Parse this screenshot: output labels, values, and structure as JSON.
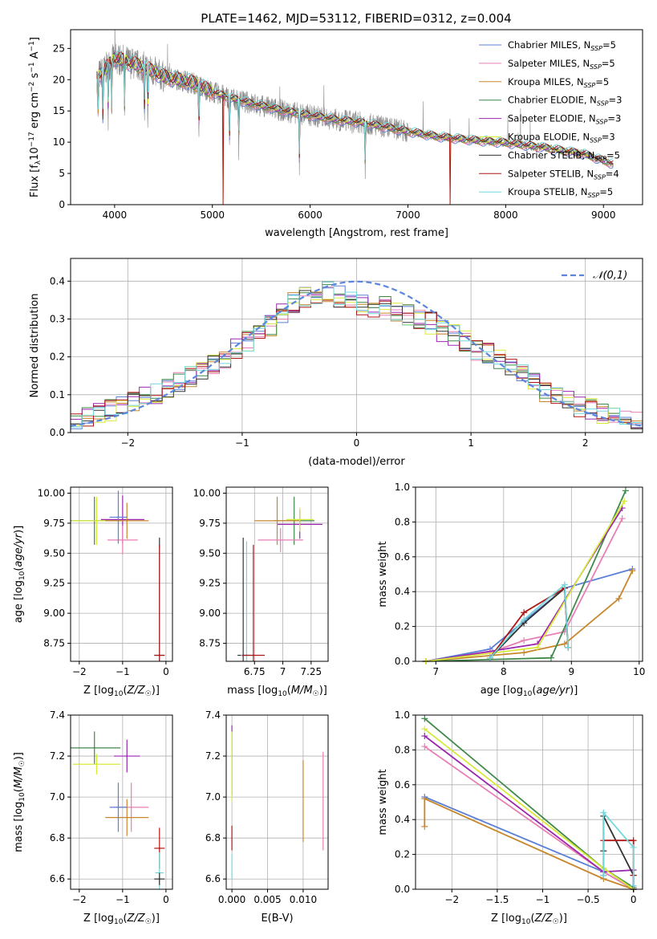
{
  "figure": {
    "title": "PLATE=1462, MJD=53112, FIBERID=0312, z=0.004"
  },
  "models": [
    {
      "name": "Chabrier MILES",
      "nssp": "5",
      "color": "#5b7fd6"
    },
    {
      "name": "Salpeter MILES",
      "nssp": "5",
      "color": "#e87fb4"
    },
    {
      "name": "Kroupa MILES",
      "nssp": "5",
      "color": "#c7872b"
    },
    {
      "name": "Chabrier ELODIE",
      "nssp": "3",
      "color": "#3f8a4a"
    },
    {
      "name": "Salpeter ELODIE",
      "nssp": "3",
      "color": "#9b27b0"
    },
    {
      "name": "Kroupa ELODIE",
      "nssp": "3",
      "color": "#d7ea3a"
    },
    {
      "name": "Chabrier STELIB",
      "nssp": "5",
      "color": "#333333"
    },
    {
      "name": "Salpeter STELIB",
      "nssp": "4",
      "color": "#b01515"
    },
    {
      "name": "Kroupa STELIB",
      "nssp": "5",
      "color": "#72d7da"
    }
  ],
  "chart_data": [
    {
      "id": "spectrum",
      "type": "line",
      "xlabel": "wavelength [Angstrom, rest frame]",
      "ylabel": "Flux [f",
      "xlim": [
        3550,
        9400
      ],
      "ylim": [
        0,
        28
      ],
      "xticks": [
        4000,
        5000,
        6000,
        7000,
        8000,
        9000
      ],
      "yticks": [
        0,
        5,
        10,
        15,
        20,
        25
      ],
      "legend_placement": "top-right",
      "continuum": {
        "x": [
          3820,
          3900,
          4000,
          4100,
          4300,
          4500,
          4800,
          5000,
          5200,
          5500,
          5800,
          6000,
          6300,
          6500,
          6800,
          7000,
          7300,
          7600,
          8000,
          8400,
          8800,
          9100
        ],
        "y": [
          20.5,
          21.5,
          23.5,
          23.0,
          22.0,
          20.5,
          19.5,
          18.0,
          17.0,
          15.8,
          14.8,
          14.3,
          13.5,
          13.2,
          12.3,
          11.7,
          10.9,
          10.4,
          9.9,
          9.1,
          8.1,
          6.5
        ]
      },
      "absorption_lines": [
        3830,
        3880,
        3935,
        3970,
        4102,
        4305,
        4340,
        4862,
        5175,
        5270,
        5890,
        6563
      ],
      "deep_drops": [
        5110,
        7430
      ]
    },
    {
      "id": "residuals",
      "type": "line",
      "xlabel": "(data-model)/error",
      "ylabel": "Normed distribution",
      "xlim": [
        -2.5,
        2.5
      ],
      "ylim": [
        0,
        0.46
      ],
      "xticks": [
        -2,
        -1,
        0,
        1,
        2
      ],
      "yticks": [
        0.0,
        0.1,
        0.2,
        0.3,
        0.4
      ],
      "legend": "𝒩(0,1)",
      "legend_placement": "top-right",
      "grid": true,
      "bin_edges_range": [
        -2.5,
        2.5
      ],
      "bins": 50,
      "hist_base": [
        0.03,
        0.04,
        0.05,
        0.06,
        0.07,
        0.08,
        0.09,
        0.1,
        0.12,
        0.13,
        0.15,
        0.17,
        0.18,
        0.2,
        0.22,
        0.24,
        0.26,
        0.28,
        0.31,
        0.34,
        0.36,
        0.37,
        0.37,
        0.36,
        0.35,
        0.34,
        0.33,
        0.33,
        0.32,
        0.31,
        0.3,
        0.29,
        0.27,
        0.26,
        0.24,
        0.22,
        0.21,
        0.19,
        0.17,
        0.15,
        0.13,
        0.11,
        0.1,
        0.08,
        0.07,
        0.06,
        0.05,
        0.04,
        0.03,
        0.03
      ]
    },
    {
      "id": "age-vs-Z",
      "type": "scatter",
      "xlabel": "Z [log10(Z/Z☉)]",
      "ylabel": "age  [log10(age/yr)]",
      "xlim": [
        -2.2,
        0.15
      ],
      "ylim": [
        8.6,
        10.05
      ],
      "xticks": [
        -2,
        -1,
        0
      ],
      "yticks": [
        8.75,
        9.0,
        9.25,
        9.5,
        9.75,
        10.0
      ],
      "grid": true,
      "points": [
        {
          "model": 3,
          "x": -1.65,
          "y": 9.77,
          "xerr": 0.6,
          "yerr": 0.2
        },
        {
          "model": 5,
          "x": -1.6,
          "y": 9.77,
          "xerr": 0.58,
          "yerr": 0.2
        },
        {
          "model": 4,
          "x": -1.0,
          "y": 9.78,
          "xerr": 0.5,
          "yerr": 0.2
        },
        {
          "model": 2,
          "x": -0.9,
          "y": 9.77,
          "xerr": 0.5,
          "yerr": 0.15
        },
        {
          "model": 1,
          "x": -1.0,
          "y": 9.61,
          "xerr": 0.35,
          "yerr": 0.12
        },
        {
          "model": 0,
          "x": -1.1,
          "y": 9.8,
          "xerr": 0.2,
          "yerr": 0.22
        },
        {
          "model": 6,
          "x": -0.15,
          "y": 8.65,
          "xerr": 0.12,
          "yerr": 0.98
        },
        {
          "model": 8,
          "x": -0.15,
          "y": 8.65,
          "xerr": 0.12,
          "yerr": 0.9
        },
        {
          "model": 7,
          "x": -0.15,
          "y": 8.65,
          "xerr": 0.12,
          "yerr": 0.92
        }
      ]
    },
    {
      "id": "age-vs-mass",
      "type": "scatter",
      "xlabel": "mass [log10(M/M☉)]",
      "ylabel": "",
      "xlim": [
        6.5,
        7.4
      ],
      "ylim": [
        8.6,
        10.05
      ],
      "xticks": [
        6.75,
        7.0,
        7.25
      ],
      "yticks": [
        8.75,
        9.0,
        9.25,
        9.5,
        9.75,
        10.0
      ],
      "grid": true,
      "points": [
        {
          "model": 3,
          "x": 7.1,
          "y": 9.77,
          "xerr": 0.18,
          "yerr": 0.2
        },
        {
          "model": 4,
          "x": 7.15,
          "y": 9.74,
          "xerr": 0.2,
          "yerr": 0.12
        },
        {
          "model": 2,
          "x": 6.95,
          "y": 9.77,
          "xerr": 0.2,
          "yerr": 0.2
        },
        {
          "model": 1,
          "x": 6.98,
          "y": 9.61,
          "xerr": 0.2,
          "yerr": 0.1
        },
        {
          "model": 5,
          "x": 7.15,
          "y": 9.78,
          "xerr": 0.12,
          "yerr": 0.1
        },
        {
          "model": 6,
          "x": 6.65,
          "y": 8.65,
          "xerr": 0.05,
          "yerr": 0.98
        },
        {
          "model": 8,
          "x": 6.68,
          "y": 8.65,
          "xerr": 0.05,
          "yerr": 0.95
        },
        {
          "model": 7,
          "x": 6.74,
          "y": 8.65,
          "xerr": 0.1,
          "yerr": 0.92
        }
      ]
    },
    {
      "id": "mass-weight-vs-age",
      "type": "line",
      "xlabel": "age  [log10(age/yr)]",
      "ylabel": "mass weight",
      "xlim": [
        6.7,
        10.05
      ],
      "ylim": [
        0,
        1.0
      ],
      "xticks": [
        7,
        8,
        9,
        10
      ],
      "yticks": [
        0.0,
        0.2,
        0.4,
        0.6,
        0.8,
        1.0
      ],
      "grid": true,
      "series": [
        {
          "model": 0,
          "x": [
            6.85,
            7.8,
            8.3,
            8.9,
            9.9
          ],
          "y": [
            0.0,
            0.07,
            0.23,
            0.42,
            0.53
          ]
        },
        {
          "model": 1,
          "x": [
            6.85,
            7.8,
            8.3,
            8.9,
            9.75
          ],
          "y": [
            0.0,
            0.05,
            0.12,
            0.17,
            0.82
          ]
        },
        {
          "model": 2,
          "x": [
            6.85,
            8.3,
            8.9,
            9.7,
            9.9
          ],
          "y": [
            0.0,
            0.05,
            0.1,
            0.36,
            0.52
          ]
        },
        {
          "model": 3,
          "x": [
            6.85,
            8.7,
            9.8
          ],
          "y": [
            0.0,
            0.02,
            0.98
          ]
        },
        {
          "model": 4,
          "x": [
            6.85,
            8.5,
            9.75
          ],
          "y": [
            0.0,
            0.1,
            0.88
          ]
        },
        {
          "model": 5,
          "x": [
            6.85,
            8.5,
            9.78
          ],
          "y": [
            0.0,
            0.08,
            0.92
          ]
        },
        {
          "model": 6,
          "x": [
            7.8,
            8.3,
            8.9,
            8.95
          ],
          "y": [
            0.02,
            0.22,
            0.42,
            0.08
          ]
        },
        {
          "model": 7,
          "x": [
            7.8,
            8.3,
            8.9,
            8.95
          ],
          "y": [
            0.02,
            0.28,
            0.42,
            0.08
          ]
        },
        {
          "model": 8,
          "x": [
            7.8,
            8.3,
            8.9,
            8.95
          ],
          "y": [
            0.02,
            0.24,
            0.44,
            0.08
          ]
        }
      ]
    },
    {
      "id": "mass-vs-Z",
      "type": "scatter",
      "xlabel": "Z [log10(Z/Z☉)]",
      "ylabel": "mass [log10(M/M☉)]",
      "xlim": [
        -2.2,
        0.15
      ],
      "ylim": [
        6.55,
        7.4
      ],
      "xticks": [
        -2,
        -1,
        0
      ],
      "yticks": [
        6.6,
        6.8,
        7.0,
        7.2,
        7.4
      ],
      "grid": true,
      "points": [
        {
          "model": 3,
          "x": -1.65,
          "y": 7.24,
          "xerr": 0.6,
          "yerr": 0.08
        },
        {
          "model": 5,
          "x": -1.6,
          "y": 7.16,
          "xerr": 0.55,
          "yerr": 0.05
        },
        {
          "model": 4,
          "x": -0.9,
          "y": 7.2,
          "xerr": 0.3,
          "yerr": 0.08
        },
        {
          "model": 1,
          "x": -0.8,
          "y": 6.95,
          "xerr": 0.4,
          "yerr": 0.12
        },
        {
          "model": 2,
          "x": -0.9,
          "y": 6.9,
          "xerr": 0.5,
          "yerr": 0.09
        },
        {
          "model": 0,
          "x": -1.1,
          "y": 6.95,
          "xerr": 0.2,
          "yerr": 0.12
        },
        {
          "model": 7,
          "x": -0.15,
          "y": 6.75,
          "xerr": 0.12,
          "yerr": 0.1
        },
        {
          "model": 8,
          "x": -0.15,
          "y": 6.63,
          "xerr": 0.1,
          "yerr": 0.1
        },
        {
          "model": 6,
          "x": -0.15,
          "y": 6.6,
          "xerr": 0.12,
          "yerr": 0.03
        }
      ]
    },
    {
      "id": "mass-vs-ebv",
      "type": "scatter",
      "xlabel": "E(B-V)",
      "ylabel": "",
      "xlim": [
        -0.0008,
        0.0135
      ],
      "ylim": [
        6.55,
        7.4
      ],
      "xticks": [
        0.0,
        0.005,
        0.01
      ],
      "xtick_labels": [
        "0.000",
        "0.005",
        "0.010"
      ],
      "yticks": [
        6.6,
        6.8,
        7.0,
        7.2,
        7.4
      ],
      "grid": true,
      "points": [
        {
          "model": 4,
          "x": 0.0,
          "y": 7.18,
          "xerr": 0.0,
          "yerr": 0.17
        },
        {
          "model": 5,
          "x": 0.0,
          "y": 7.15,
          "xerr": 0.0,
          "yerr": 0.17
        },
        {
          "model": 7,
          "x": 0.0,
          "y": 6.8,
          "xerr": 0.0,
          "yerr": 0.06
        },
        {
          "model": 8,
          "x": 0.0,
          "y": 6.66,
          "xerr": 0.0,
          "yerr": 0.06
        },
        {
          "model": 2,
          "x": 0.01,
          "y": 6.98,
          "xerr": 0.0,
          "yerr": 0.2
        },
        {
          "model": 1,
          "x": 0.0128,
          "y": 6.98,
          "xerr": 0.0,
          "yerr": 0.24
        }
      ]
    },
    {
      "id": "mass-weight-vs-Z",
      "type": "line",
      "xlabel": "Z [log10(Z/Z☉)]",
      "ylabel": "mass weight",
      "xlim": [
        -2.4,
        0.1
      ],
      "ylim": [
        0,
        1.0
      ],
      "xticks": [
        -2.0,
        -1.5,
        -1.0,
        -0.5,
        0.0
      ],
      "yticks": [
        0.0,
        0.2,
        0.4,
        0.6,
        0.8,
        1.0
      ],
      "grid": true,
      "series": [
        {
          "model": 0,
          "x": [
            -2.3,
            -0.33,
            0.0
          ],
          "y": [
            0.53,
            0.1,
            0.0
          ]
        },
        {
          "model": 1,
          "x": [
            -2.3,
            -0.33,
            0.0
          ],
          "y": [
            0.82,
            0.1,
            0.0
          ]
        },
        {
          "model": 2,
          "x": [
            -2.3,
            -2.3,
            -0.33,
            0.0
          ],
          "y": [
            0.36,
            0.52,
            0.06,
            0.0
          ]
        },
        {
          "model": 3,
          "x": [
            -2.3,
            -0.33,
            0.0
          ],
          "y": [
            0.98,
            0.12,
            0.01
          ]
        },
        {
          "model": 4,
          "x": [
            -2.3,
            -0.33,
            0.0,
            0.0
          ],
          "y": [
            0.88,
            0.1,
            0.11,
            0.0
          ]
        },
        {
          "model": 5,
          "x": [
            -2.3,
            -0.33,
            0.0
          ],
          "y": [
            0.92,
            0.12,
            0.0
          ]
        },
        {
          "model": 6,
          "x": [
            -0.33,
            -0.33,
            0.0,
            0.0
          ],
          "y": [
            0.22,
            0.42,
            0.08,
            0.0
          ]
        },
        {
          "model": 7,
          "x": [
            -0.33,
            -0.33,
            0.0,
            0.0
          ],
          "y": [
            0.08,
            0.28,
            0.28,
            0.08
          ]
        },
        {
          "model": 8,
          "x": [
            -0.33,
            -0.33,
            0.0,
            0.0
          ],
          "y": [
            0.08,
            0.44,
            0.24,
            0.02
          ]
        }
      ]
    }
  ]
}
